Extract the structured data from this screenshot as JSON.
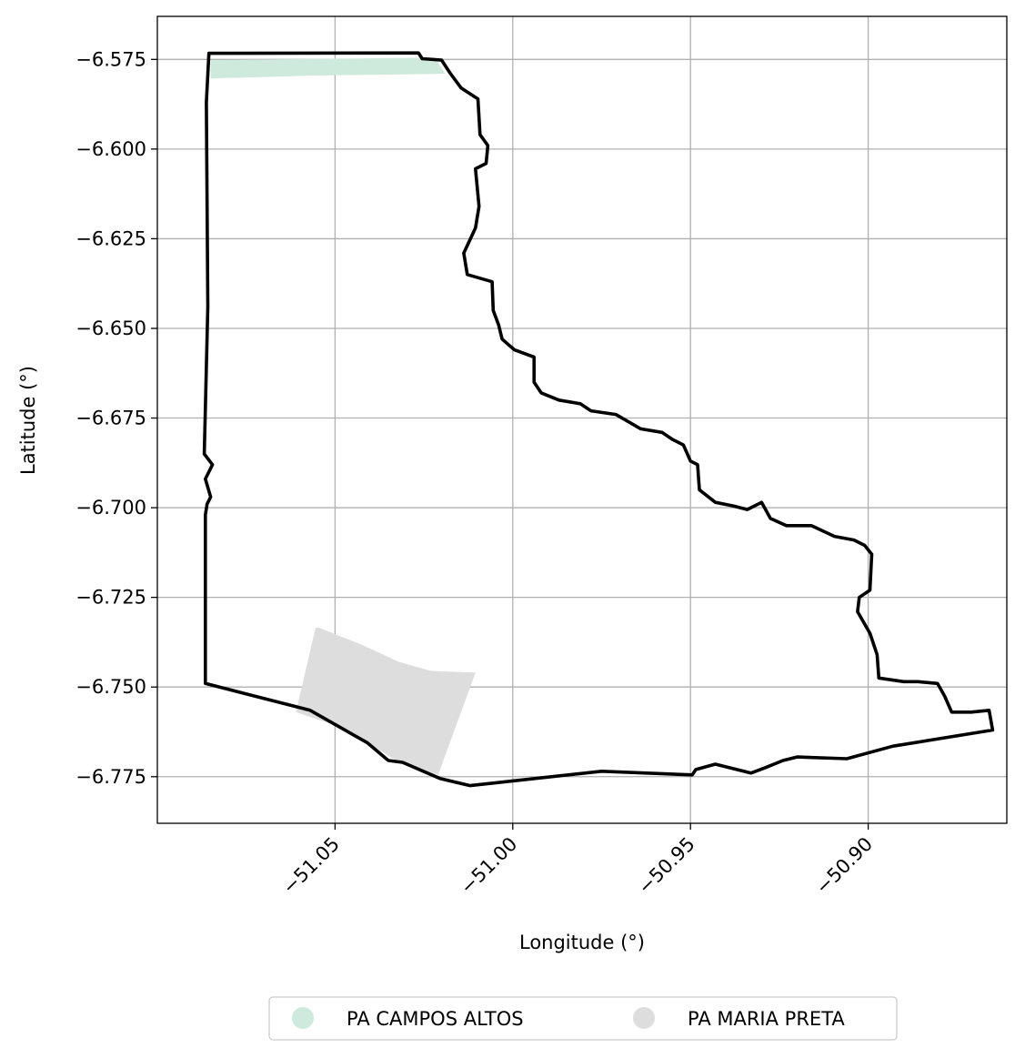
{
  "chart_data": {
    "type": "map",
    "xlabel": "Longitude (°)",
    "ylabel": "Latitude (°)",
    "xlim": [
      -51.1,
      -50.861
    ],
    "ylim": [
      -6.788,
      -6.563
    ],
    "xticks": [
      -51.05,
      -51.0,
      -50.95,
      -50.9
    ],
    "xtick_labels": [
      "−51.05",
      "−51.00",
      "−50.95",
      "−50.90"
    ],
    "yticks": [
      -6.575,
      -6.6,
      -6.625,
      -6.65,
      -6.675,
      -6.7,
      -6.725,
      -6.75,
      -6.775
    ],
    "ytick_labels": [
      "−6.575",
      "−6.600",
      "−6.625",
      "−6.650",
      "−6.675",
      "−6.700",
      "−6.725",
      "−6.750",
      "−6.775"
    ],
    "grid": true,
    "legend_position": "bottom-center",
    "boundary": {
      "color": "#000000",
      "coords": [
        [
          -51.0855,
          -6.5733
        ],
        [
          -51.0265,
          -6.5732
        ],
        [
          -51.0255,
          -6.5748
        ],
        [
          -51.02,
          -6.5752
        ],
        [
          -51.0175,
          -6.579
        ],
        [
          -51.0145,
          -6.583
        ],
        [
          -51.0098,
          -6.586
        ],
        [
          -51.0092,
          -6.596
        ],
        [
          -51.007,
          -6.599
        ],
        [
          -51.0075,
          -6.604
        ],
        [
          -51.0105,
          -6.6055
        ],
        [
          -51.0095,
          -6.616
        ],
        [
          -51.0105,
          -6.622
        ],
        [
          -51.0138,
          -6.629
        ],
        [
          -51.0128,
          -6.635
        ],
        [
          -51.0058,
          -6.637
        ],
        [
          -51.0055,
          -6.645
        ],
        [
          -51.004,
          -6.649
        ],
        [
          -51.003,
          -6.653
        ],
        [
          -50.9995,
          -6.656
        ],
        [
          -50.994,
          -6.658
        ],
        [
          -50.994,
          -6.665
        ],
        [
          -50.992,
          -6.668
        ],
        [
          -50.987,
          -6.67
        ],
        [
          -50.981,
          -6.671
        ],
        [
          -50.978,
          -6.673
        ],
        [
          -50.971,
          -6.674
        ],
        [
          -50.964,
          -6.678
        ],
        [
          -50.958,
          -6.679
        ],
        [
          -50.955,
          -6.681
        ],
        [
          -50.952,
          -6.6825
        ],
        [
          -50.95,
          -6.687
        ],
        [
          -50.948,
          -6.688
        ],
        [
          -50.9475,
          -6.695
        ],
        [
          -50.943,
          -6.6985
        ],
        [
          -50.938,
          -6.6995
        ],
        [
          -50.934,
          -6.7005
        ],
        [
          -50.93,
          -6.6985
        ],
        [
          -50.9275,
          -6.703
        ],
        [
          -50.923,
          -6.705
        ],
        [
          -50.916,
          -6.705
        ],
        [
          -50.9095,
          -6.708
        ],
        [
          -50.904,
          -6.709
        ],
        [
          -50.901,
          -6.7105
        ],
        [
          -50.899,
          -6.713
        ],
        [
          -50.8995,
          -6.723
        ],
        [
          -50.9025,
          -6.725
        ],
        [
          -50.903,
          -6.729
        ],
        [
          -50.8995,
          -6.735
        ],
        [
          -50.8975,
          -6.741
        ],
        [
          -50.897,
          -6.7475
        ],
        [
          -50.89,
          -6.7485
        ],
        [
          -50.886,
          -6.7485
        ],
        [
          -50.8805,
          -6.749
        ],
        [
          -50.8785,
          -6.7525
        ],
        [
          -50.8765,
          -6.757
        ],
        [
          -50.871,
          -6.757
        ],
        [
          -50.866,
          -6.7565
        ],
        [
          -50.865,
          -6.762
        ],
        [
          -50.893,
          -6.7665
        ],
        [
          -50.906,
          -6.77
        ],
        [
          -50.92,
          -6.7695
        ],
        [
          -50.924,
          -6.7705
        ],
        [
          -50.929,
          -6.7725
        ],
        [
          -50.933,
          -6.774
        ],
        [
          -50.943,
          -6.7715
        ],
        [
          -50.9485,
          -6.773
        ],
        [
          -50.9495,
          -6.7745
        ],
        [
          -50.975,
          -6.7735
        ],
        [
          -51.012,
          -6.7775
        ],
        [
          -51.0205,
          -6.7755
        ],
        [
          -51.031,
          -6.771
        ],
        [
          -51.035,
          -6.7705
        ],
        [
          -51.041,
          -6.7655
        ],
        [
          -51.049,
          -6.761
        ],
        [
          -51.057,
          -6.7565
        ],
        [
          -51.0865,
          -6.749
        ],
        [
          -51.0865,
          -6.702
        ],
        [
          -51.086,
          -6.699
        ],
        [
          -51.085,
          -6.697
        ],
        [
          -51.0865,
          -6.692
        ],
        [
          -51.0845,
          -6.688
        ],
        [
          -51.0868,
          -6.685
        ],
        [
          -51.0858,
          -6.644
        ],
        [
          -51.0862,
          -6.587
        ],
        [
          -51.0855,
          -6.5733
        ]
      ]
    },
    "series": [
      {
        "name": "PA CAMPOS ALTOS",
        "color": "#cdeadc",
        "polygon": [
          [
            -51.085,
            -6.5752
          ],
          [
            -51.022,
            -6.5745
          ],
          [
            -51.019,
            -6.579
          ],
          [
            -51.055,
            -6.5795
          ],
          [
            -51.085,
            -6.5803
          ]
        ]
      },
      {
        "name": "PA MARIA PRETA",
        "color": "#dddddd",
        "polygon": [
          [
            -51.0545,
            -6.7335
          ],
          [
            -51.043,
            -6.738
          ],
          [
            -51.032,
            -6.743
          ],
          [
            -51.023,
            -6.7455
          ],
          [
            -51.0105,
            -6.746
          ],
          [
            -51.021,
            -6.7745
          ],
          [
            -51.032,
            -6.771
          ],
          [
            -51.041,
            -6.7655
          ],
          [
            -51.049,
            -6.761
          ],
          [
            -51.061,
            -6.757
          ],
          [
            -51.0555,
            -6.7335
          ]
        ]
      }
    ]
  }
}
